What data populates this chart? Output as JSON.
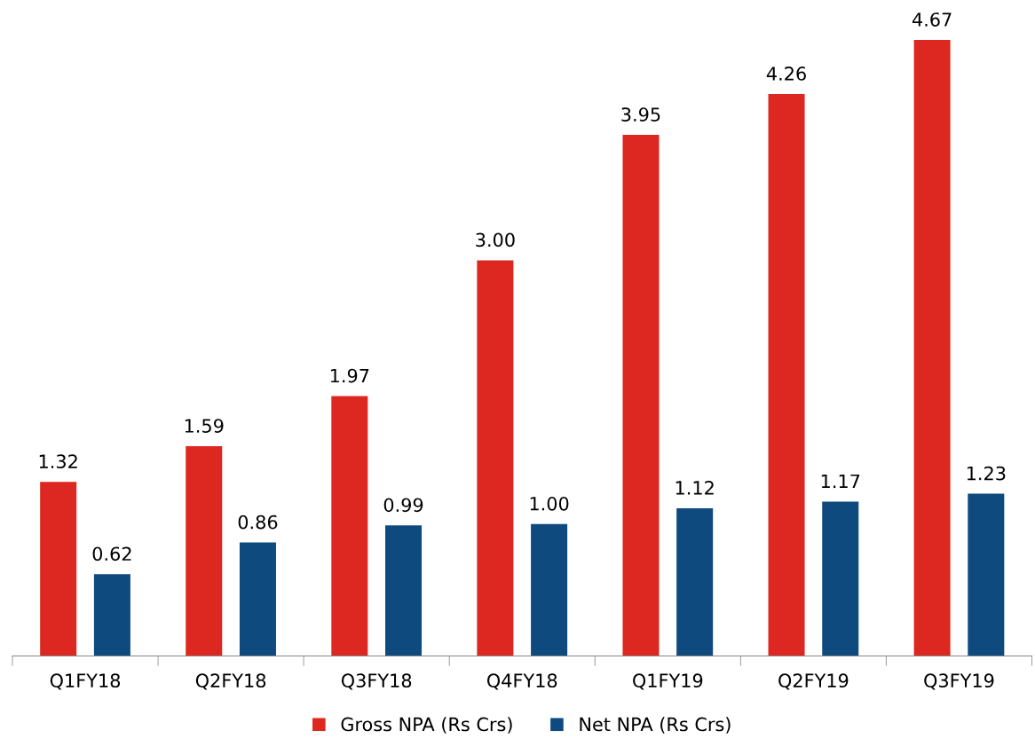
{
  "chart_data": {
    "type": "bar",
    "categories": [
      "Q1FY18",
      "Q2FY18",
      "Q3FY18",
      "Q4FY18",
      "Q1FY19",
      "Q2FY19",
      "Q3FY19"
    ],
    "series": [
      {
        "name": "Gross NPA (Rs Crs)",
        "color": "#dc2820",
        "values": [
          1.32,
          1.59,
          1.97,
          3.0,
          3.95,
          4.26,
          4.67
        ],
        "value_labels": [
          "1.32",
          "1.59",
          "1.97",
          "3.00",
          "3.95",
          "4.26",
          "4.67"
        ]
      },
      {
        "name": "Net NPA (Rs Crs)",
        "color": "#0e4a7e",
        "values": [
          0.62,
          0.86,
          0.99,
          1.0,
          1.12,
          1.17,
          1.23
        ],
        "value_labels": [
          "0.62",
          "0.86",
          "0.99",
          "1.00",
          "1.12",
          "1.17",
          "1.23"
        ]
      }
    ],
    "grid": false,
    "legend": "bottom"
  }
}
